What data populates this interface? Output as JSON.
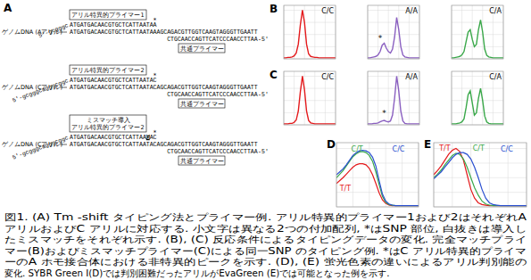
{
  "panel_labels": [
    "A",
    "B",
    "C",
    "D",
    "E"
  ],
  "diagram": {
    "rows": [
      {
        "tail": "5'-gcgggc",
        "primer_label": [
          "アリル特異的プライマー1"
        ],
        "primer": "ATGATGACAACGTGCTCATTAATAA",
        "snp_mark": "*",
        "genome_label": "ゲノムDNA (Aアリル)",
        "genome_before": "ATGATGACAACGTGCTCATTAATA",
        "snp_base": "A",
        "genome_after": "AGCAGACGTTGGTCAAGTAGGGTTGAATT",
        "reverse": "CTGCAACCAGTTCATCCCAACCTTAA",
        "reverse_end": "-5'",
        "common_label": "共通プライマー"
      },
      {
        "tail": "5'-gcgggcagggcggc",
        "primer_label": [
          "アリル特異的プライマー2"
        ],
        "primer": "ATGATGACAACGTGCTCATTAATAC",
        "snp_mark": "*",
        "genome_label": "ゲノムDNA (Cアリル)",
        "genome_before": "ATGATGACAACGTGCTCATTAATA",
        "snp_base": "C",
        "genome_after": "AGCAGACGTTGGTCAAGTAGGGTTGAATT",
        "reverse": "CTGCAACCAGTTCATCCCAACCTTAA",
        "reverse_end": "-5'",
        "common_label": "共通プライマー"
      },
      {
        "tail": "5'-gcgggcagggcggc",
        "primer_label": [
          "ミスマッチ導入",
          "アリル特異的プライマー2"
        ],
        "primer": "ATGATGACAACGTGCTCATTAA",
        "mismatch": "G",
        "primer_end": "AC",
        "snp_mark": "*",
        "genome_label": "ゲノムDNA (Cアリル)",
        "genome_before": "ATGATGACAACGTGCTCATTAATA",
        "snp_base": "C",
        "genome_after": "AGCAGACGTTGGTCAAGTAGGGTTGAATT",
        "reverse": "CTGCAACCAGTTCATCCCAACCTTAA",
        "reverse_end": "-5'",
        "common_label": "共通プライマー"
      }
    ]
  },
  "chart_data": [
    {
      "type": "line",
      "x": [
        70,
        71,
        72,
        73,
        74,
        75,
        76,
        77,
        78,
        79,
        80,
        81,
        82,
        83,
        84,
        85,
        86,
        87,
        88,
        89,
        90,
        91,
        92,
        93,
        94,
        95
      ],
      "xlim": [
        70,
        95
      ],
      "ylim": [
        0,
        1.1
      ],
      "xticks": [
        70,
        75,
        80,
        85,
        90,
        95
      ],
      "yticks": [
        0,
        0.25,
        0.5,
        0.75,
        1
      ],
      "grid": true,
      "tick_labels": false,
      "series": [
        {
          "name": "C/C",
          "color": "#e41a1c",
          "values": [
            0.02,
            0.02,
            0.03,
            0.03,
            0.04,
            0.06,
            0.12,
            0.3,
            0.7,
            1.0,
            0.75,
            0.3,
            0.1,
            0.05,
            0.04,
            0.03,
            0.03,
            0.02,
            0.02,
            0.02,
            0.02,
            0.02,
            0.02,
            0.02,
            0.02,
            0.02
          ]
        }
      ]
    },
    {
      "type": "line",
      "x": [
        70,
        71,
        72,
        73,
        74,
        75,
        76,
        77,
        78,
        79,
        80,
        81,
        82,
        83,
        84,
        85,
        86,
        87,
        88,
        89,
        90,
        91,
        92,
        93,
        94,
        95
      ],
      "xlim": [
        70,
        95
      ],
      "ylim": [
        0,
        1.1
      ],
      "xticks": [
        70,
        75,
        80,
        85,
        90,
        95
      ],
      "yticks": [
        0,
        0.25,
        0.5,
        0.75,
        1
      ],
      "grid": true,
      "tick_labels": false,
      "annotations": [
        {
          "text": "*",
          "x": 76,
          "y": 0.36
        }
      ],
      "series": [
        {
          "name": "A/A",
          "color": "#8a5fc0",
          "values": [
            0.02,
            0.02,
            0.03,
            0.04,
            0.05,
            0.08,
            0.15,
            0.28,
            0.32,
            0.22,
            0.15,
            0.12,
            0.2,
            0.45,
            0.85,
            0.6,
            0.25,
            0.08,
            0.04,
            0.03,
            0.02,
            0.02,
            0.02,
            0.02,
            0.02,
            0.02
          ]
        }
      ]
    },
    {
      "type": "line",
      "x": [
        70,
        71,
        72,
        73,
        74,
        75,
        76,
        77,
        78,
        79,
        80,
        81,
        82,
        83,
        84,
        85,
        86,
        87,
        88,
        89,
        90,
        91,
        92,
        93,
        94,
        95
      ],
      "xlim": [
        70,
        95
      ],
      "ylim": [
        0,
        1.1
      ],
      "xticks": [
        70,
        75,
        80,
        85,
        90,
        95
      ],
      "yticks": [
        0,
        0.25,
        0.5,
        0.75,
        1
      ],
      "grid": true,
      "tick_labels": false,
      "series": [
        {
          "name": "C/A",
          "color": "#3aa84a",
          "values": [
            0.02,
            0.02,
            0.03,
            0.04,
            0.05,
            0.08,
            0.15,
            0.35,
            0.55,
            0.6,
            0.4,
            0.25,
            0.3,
            0.6,
            0.8,
            0.55,
            0.2,
            0.07,
            0.04,
            0.03,
            0.02,
            0.02,
            0.02,
            0.02,
            0.02,
            0.02
          ]
        }
      ]
    },
    {
      "type": "line",
      "x": [
        70,
        71,
        72,
        73,
        74,
        75,
        76,
        77,
        78,
        79,
        80,
        81,
        82,
        83,
        84,
        85,
        86,
        87,
        88,
        89,
        90,
        91,
        92,
        93,
        94,
        95
      ],
      "xlim": [
        70,
        95
      ],
      "ylim": [
        0,
        1.1
      ],
      "xticks": [
        70,
        75,
        80,
        85,
        90,
        95
      ],
      "yticks": [
        0,
        0.25,
        0.5,
        0.75,
        1
      ],
      "grid": true,
      "tick_labels": false,
      "series": [
        {
          "name": "C/C",
          "color": "#e41a1c",
          "values": [
            0.02,
            0.02,
            0.02,
            0.03,
            0.03,
            0.05,
            0.1,
            0.28,
            0.68,
            1.0,
            0.72,
            0.28,
            0.09,
            0.04,
            0.03,
            0.02,
            0.02,
            0.02,
            0.02,
            0.02,
            0.02,
            0.02,
            0.02,
            0.02,
            0.02,
            0.02
          ]
        }
      ]
    },
    {
      "type": "line",
      "x": [
        70,
        71,
        72,
        73,
        74,
        75,
        76,
        77,
        78,
        79,
        80,
        81,
        82,
        83,
        84,
        85,
        86,
        87,
        88,
        89,
        90,
        91,
        92,
        93,
        94,
        95
      ],
      "xlim": [
        70,
        95
      ],
      "ylim": [
        0,
        1.1
      ],
      "xticks": [
        70,
        75,
        80,
        85,
        90,
        95
      ],
      "yticks": [
        0,
        0.25,
        0.5,
        0.75,
        1
      ],
      "grid": true,
      "tick_labels": false,
      "annotations": [
        {
          "text": "*",
          "x": 78,
          "y": 0.18
        }
      ],
      "series": [
        {
          "name": "A/A",
          "color": "#8a5fc0",
          "values": [
            0.02,
            0.02,
            0.02,
            0.03,
            0.03,
            0.04,
            0.06,
            0.08,
            0.09,
            0.07,
            0.06,
            0.08,
            0.2,
            0.55,
            1.0,
            0.7,
            0.28,
            0.08,
            0.03,
            0.02,
            0.02,
            0.02,
            0.02,
            0.02,
            0.02,
            0.02
          ]
        }
      ]
    },
    {
      "type": "line",
      "x": [
        70,
        71,
        72,
        73,
        74,
        75,
        76,
        77,
        78,
        79,
        80,
        81,
        82,
        83,
        84,
        85,
        86,
        87,
        88,
        89,
        90,
        91,
        92,
        93,
        94,
        95
      ],
      "xlim": [
        70,
        95
      ],
      "ylim": [
        0,
        1.1
      ],
      "xticks": [
        70,
        75,
        80,
        85,
        90,
        95
      ],
      "yticks": [
        0,
        0.25,
        0.5,
        0.75,
        1
      ],
      "grid": true,
      "tick_labels": false,
      "series": [
        {
          "name": "C/A",
          "color": "#3aa84a",
          "values": [
            0.02,
            0.02,
            0.02,
            0.03,
            0.04,
            0.06,
            0.12,
            0.35,
            0.62,
            0.7,
            0.45,
            0.2,
            0.25,
            0.55,
            0.75,
            0.5,
            0.18,
            0.06,
            0.03,
            0.02,
            0.02,
            0.02,
            0.02,
            0.02,
            0.02,
            0.02
          ]
        }
      ]
    },
    {
      "type": "line",
      "x": [
        70,
        71,
        72,
        73,
        74,
        75,
        76,
        77,
        78,
        79,
        80,
        81,
        82,
        83,
        84,
        85,
        86,
        87,
        88,
        89,
        90,
        91,
        92,
        93,
        94,
        95
      ],
      "xlim": [
        70,
        95
      ],
      "ylim": [
        0,
        1.1
      ],
      "xticks": [
        70,
        75,
        80,
        85,
        90,
        95
      ],
      "yticks": [
        0,
        0.25,
        0.5,
        0.75,
        1
      ],
      "grid": true,
      "tick_labels": false,
      "series": [
        {
          "name": "T/T",
          "color": "#e41a1c",
          "values": [
            0.4,
            0.45,
            0.5,
            0.56,
            0.62,
            0.68,
            0.72,
            0.74,
            0.74,
            0.72,
            0.66,
            0.55,
            0.4,
            0.24,
            0.12,
            0.06,
            0.03,
            0.02,
            0.02,
            0.02,
            0.02,
            0.02,
            0.02,
            0.02,
            0.02,
            0.02
          ]
        },
        {
          "name": "C/T",
          "color": "#3aa84a",
          "values": [
            0.5,
            0.56,
            0.62,
            0.7,
            0.78,
            0.86,
            0.91,
            0.94,
            0.95,
            0.93,
            0.88,
            0.78,
            0.6,
            0.38,
            0.18,
            0.08,
            0.04,
            0.03,
            0.02,
            0.02,
            0.02,
            0.02,
            0.02,
            0.02,
            0.02,
            0.02
          ]
        },
        {
          "name": "C/C",
          "color": "#2a4fd0",
          "values": [
            0.55,
            0.6,
            0.65,
            0.72,
            0.8,
            0.88,
            0.93,
            0.96,
            0.97,
            0.96,
            0.93,
            0.85,
            0.7,
            0.45,
            0.22,
            0.1,
            0.05,
            0.03,
            0.02,
            0.02,
            0.02,
            0.02,
            0.02,
            0.02,
            0.02,
            0.02
          ]
        }
      ]
    },
    {
      "type": "line",
      "x": [
        70,
        71,
        72,
        73,
        74,
        75,
        76,
        77,
        78,
        79,
        80,
        81,
        82,
        83,
        84,
        85,
        86,
        87,
        88,
        89,
        90,
        91,
        92,
        93,
        94,
        95
      ],
      "xlim": [
        70,
        95
      ],
      "ylim": [
        0,
        1.1
      ],
      "xticks": [
        70,
        75,
        80,
        85,
        90,
        95
      ],
      "yticks": [
        0,
        0.25,
        0.5,
        0.75,
        1
      ],
      "grid": true,
      "tick_labels": false,
      "series": [
        {
          "name": "T/T",
          "color": "#e41a1c",
          "values": [
            0.55,
            0.62,
            0.7,
            0.8,
            0.9,
            0.97,
            1.0,
            0.95,
            0.8,
            0.55,
            0.3,
            0.15,
            0.07,
            0.04,
            0.03,
            0.02,
            0.02,
            0.02,
            0.02,
            0.02,
            0.02,
            0.02,
            0.02,
            0.02,
            0.02,
            0.02
          ]
        },
        {
          "name": "C/T",
          "color": "#3aa84a",
          "values": [
            0.5,
            0.56,
            0.63,
            0.72,
            0.8,
            0.88,
            0.92,
            0.9,
            0.82,
            0.68,
            0.5,
            0.33,
            0.2,
            0.1,
            0.05,
            0.03,
            0.02,
            0.02,
            0.02,
            0.02,
            0.02,
            0.02,
            0.02,
            0.02,
            0.02,
            0.02
          ]
        },
        {
          "name": "C/C",
          "color": "#2a4fd0",
          "values": [
            0.48,
            0.54,
            0.6,
            0.68,
            0.76,
            0.84,
            0.9,
            0.93,
            0.93,
            0.9,
            0.82,
            0.68,
            0.5,
            0.3,
            0.15,
            0.07,
            0.04,
            0.03,
            0.02,
            0.02,
            0.02,
            0.02,
            0.02,
            0.02,
            0.02,
            0.02
          ]
        }
      ]
    }
  ],
  "caption": [
    "図1. (A) Tm -shift タイピング法とプライマー例. アリル特異的プライマー1および2はそれぞれA",
    "アリルおよびC アリルに対応する. 小文字は異なる2つの付加配列, *はSNP 部位, 白抜きは導入し",
    "たミスマッチをそれぞれ示す. (B), (C) 反応条件によるタイピングデータの変化. 完全マッチプライ",
    "マー(B)およびミスマッチプライマー(C)による同一SNP のタイピング例. *はC アリル特異的プライマ",
    "ーのA ホモ接合体における非特異的ピークを示す. (D), (E) 蛍光色素の違いによるアリル判別能の",
    "変化. SYBR Green I(D)では判別困難だったアリルがEvaGreen (E)では可能となった例を示す."
  ]
}
